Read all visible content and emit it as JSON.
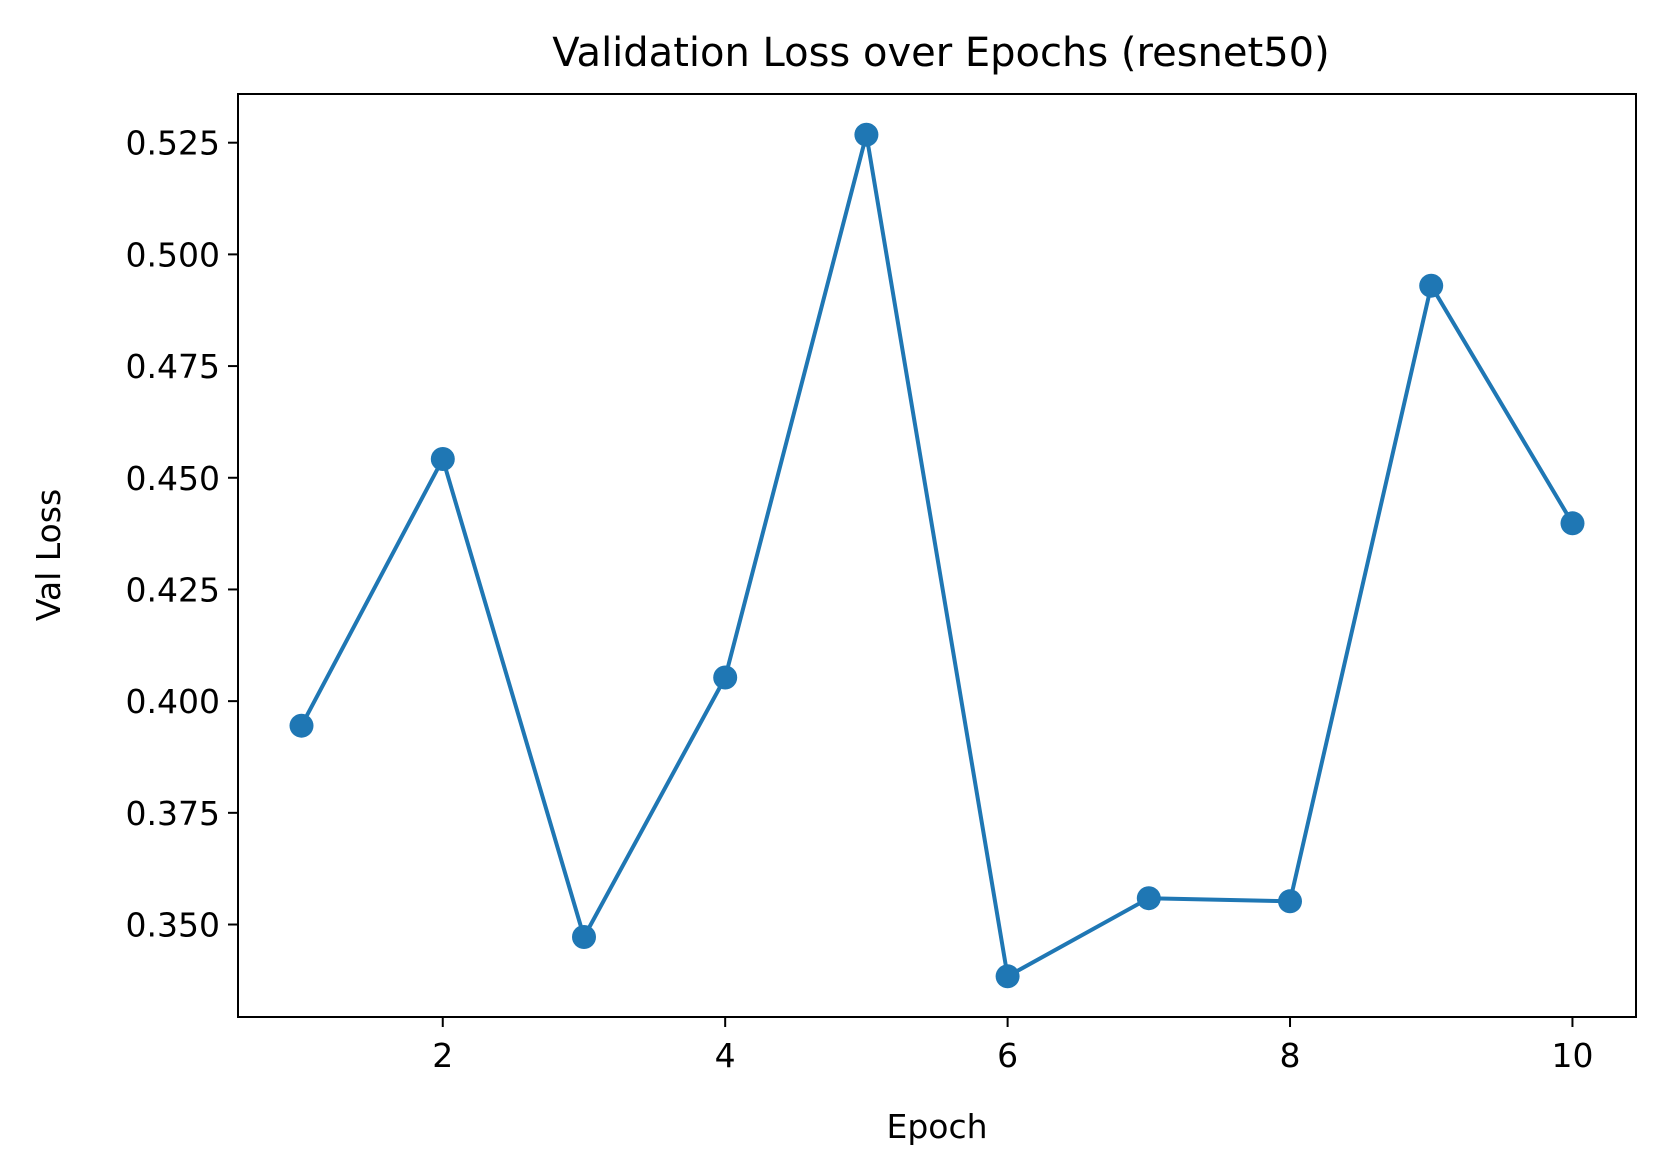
{
  "chart_data": {
    "type": "line",
    "title": "Validation Loss over Epochs (resnet50)",
    "xlabel": "Epoch",
    "ylabel": "Val Loss",
    "x": [
      1,
      2,
      3,
      4,
      5,
      6,
      7,
      8,
      9,
      10
    ],
    "series": [
      {
        "values": [
          0.3945,
          0.4542,
          0.3472,
          0.4053,
          0.5268,
          0.3384,
          0.3559,
          0.3552,
          0.493,
          0.4398
        ],
        "color": "#1f77b4",
        "marker": "circle"
      }
    ],
    "xlim": [
      0.55,
      10.45
    ],
    "ylim": [
      0.3293,
      0.5359
    ],
    "xticks": [
      2,
      4,
      6,
      8,
      10
    ],
    "xtick_labels": [
      "2",
      "4",
      "6",
      "8",
      "10"
    ],
    "yticks": [
      0.35,
      0.375,
      0.4,
      0.425,
      0.45,
      0.475,
      0.5,
      0.525
    ],
    "ytick_labels": [
      "0.350",
      "0.375",
      "0.400",
      "0.425",
      "0.450",
      "0.475",
      "0.500",
      "0.525"
    ],
    "grid": false,
    "legend": "none"
  }
}
